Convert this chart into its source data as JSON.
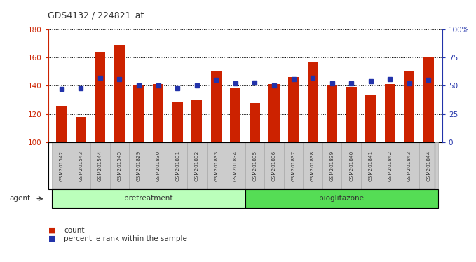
{
  "title": "GDS4132 / 224821_at",
  "samples": [
    "GSM201542",
    "GSM201543",
    "GSM201544",
    "GSM201545",
    "GSM201829",
    "GSM201830",
    "GSM201831",
    "GSM201832",
    "GSM201833",
    "GSM201834",
    "GSM201835",
    "GSM201836",
    "GSM201837",
    "GSM201838",
    "GSM201839",
    "GSM201840",
    "GSM201841",
    "GSM201842",
    "GSM201843",
    "GSM201844"
  ],
  "counts": [
    126,
    118,
    164,
    169,
    140,
    141,
    129,
    130,
    150,
    138,
    128,
    141,
    146,
    157,
    140,
    139,
    133,
    141,
    150,
    160
  ],
  "percentile_ranks": [
    47,
    48,
    57,
    56,
    50,
    50,
    48,
    50,
    55,
    52,
    53,
    50,
    56,
    57,
    52,
    52,
    54,
    56,
    52,
    55
  ],
  "groups": [
    "pretreatment",
    "pretreatment",
    "pretreatment",
    "pretreatment",
    "pretreatment",
    "pretreatment",
    "pretreatment",
    "pretreatment",
    "pretreatment",
    "pretreatment",
    "pioglitazone",
    "pioglitazone",
    "pioglitazone",
    "pioglitazone",
    "pioglitazone",
    "pioglitazone",
    "pioglitazone",
    "pioglitazone",
    "pioglitazone",
    "pioglitazone"
  ],
  "bar_color": "#cc2200",
  "marker_color": "#2233aa",
  "bar_bottom": 100,
  "ylim_left": [
    100,
    180
  ],
  "ylim_right": [
    0,
    100
  ],
  "yticks_left": [
    100,
    120,
    140,
    160,
    180
  ],
  "yticks_right": [
    0,
    25,
    50,
    75,
    100
  ],
  "ytick_labels_right": [
    "0",
    "25",
    "50",
    "75",
    "100%"
  ],
  "pretreatment_color": "#bbffbb",
  "pioglitazone_color": "#55dd55",
  "group_label_pretreatment": "pretreatment",
  "group_label_pioglitazone": "pioglitazone",
  "agent_label": "agent",
  "legend_count": "count",
  "legend_percentile": "percentile rank within the sample",
  "plot_bg_color": "#ffffff",
  "title_color": "#333333",
  "xlabel_bg": "#cccccc",
  "xlabel_border": "#aaaaaa"
}
